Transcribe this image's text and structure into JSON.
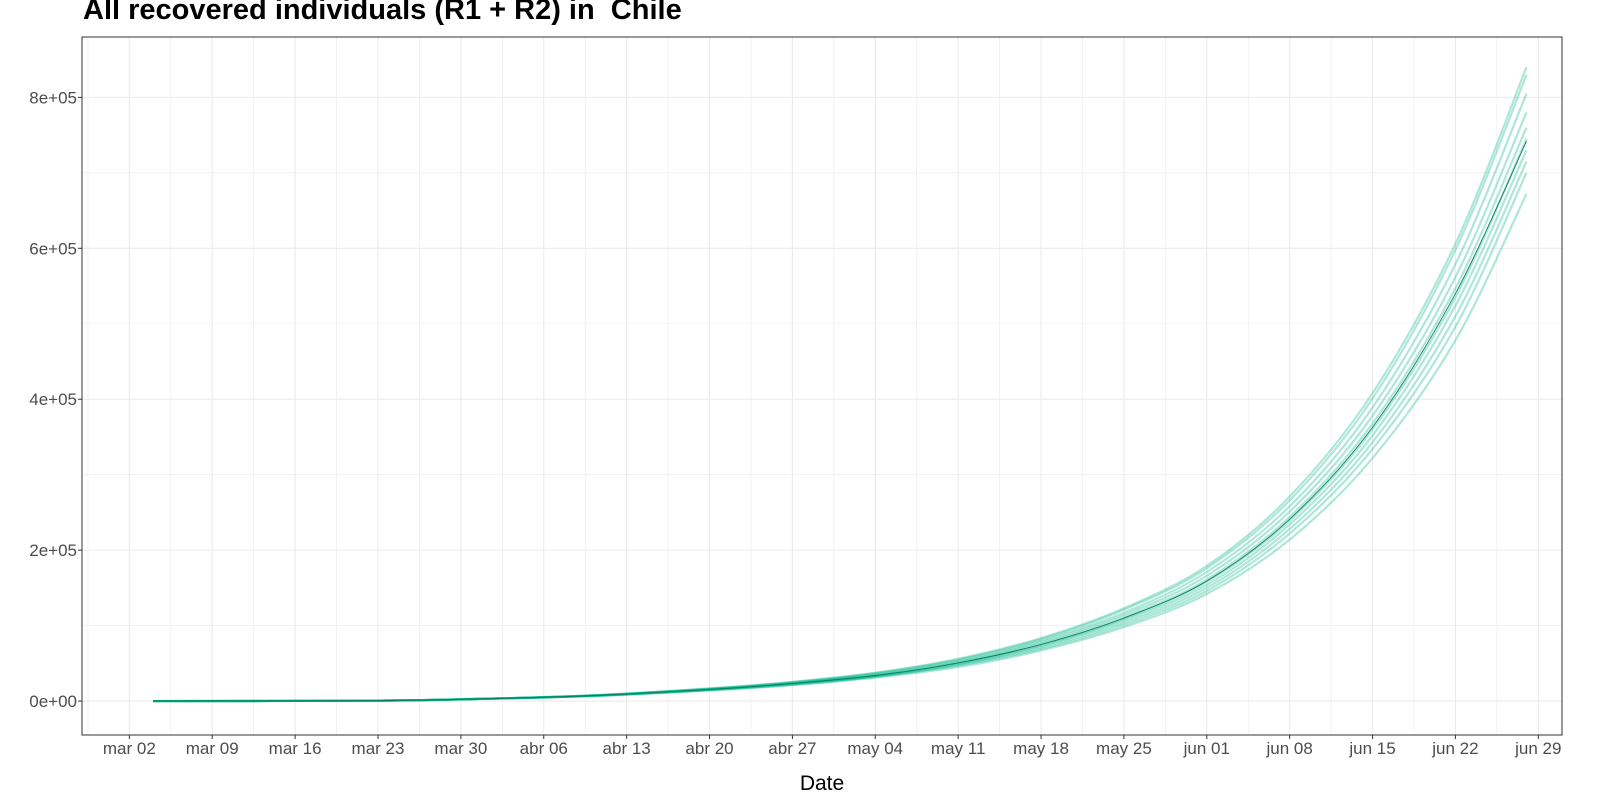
{
  "chart_data": {
    "type": "line",
    "title": "All recovered individuals (R1 + R2) in  Chile",
    "xlabel": "Date",
    "ylabel": "",
    "x_range": [
      "2020-02-27",
      "2020-07-01"
    ],
    "ylim": [
      -45000,
      880000
    ],
    "grid": true,
    "legend": "none",
    "x_ticks": [
      {
        "date": "2020-03-02",
        "label": "mar 02"
      },
      {
        "date": "2020-03-09",
        "label": "mar 09"
      },
      {
        "date": "2020-03-16",
        "label": "mar 16"
      },
      {
        "date": "2020-03-23",
        "label": "mar 23"
      },
      {
        "date": "2020-03-30",
        "label": "mar 30"
      },
      {
        "date": "2020-04-06",
        "label": "abr 06"
      },
      {
        "date": "2020-04-13",
        "label": "abr 13"
      },
      {
        "date": "2020-04-20",
        "label": "abr 20"
      },
      {
        "date": "2020-04-27",
        "label": "abr 27"
      },
      {
        "date": "2020-05-04",
        "label": "may 04"
      },
      {
        "date": "2020-05-11",
        "label": "may 11"
      },
      {
        "date": "2020-05-18",
        "label": "may 18"
      },
      {
        "date": "2020-05-25",
        "label": "may 25"
      },
      {
        "date": "2020-06-01",
        "label": "jun 01"
      },
      {
        "date": "2020-06-08",
        "label": "jun 08"
      },
      {
        "date": "2020-06-15",
        "label": "jun 15"
      },
      {
        "date": "2020-06-22",
        "label": "jun 22"
      },
      {
        "date": "2020-06-29",
        "label": "jun 29"
      }
    ],
    "y_ticks": [
      {
        "value": 0,
        "label": "0e+00"
      },
      {
        "value": 200000,
        "label": "2e+05"
      },
      {
        "value": 400000,
        "label": "4e+05"
      },
      {
        "value": 600000,
        "label": "6e+05"
      },
      {
        "value": 800000,
        "label": "8e+05"
      }
    ],
    "colors": {
      "band": "#00b386",
      "median": "#007a5c",
      "grid": "#ebebeb",
      "panel_border": "#333333"
    },
    "x": [
      "2020-03-04",
      "2020-03-23",
      "2020-04-01",
      "2020-04-10",
      "2020-04-20",
      "2020-04-27",
      "2020-05-04",
      "2020-05-11",
      "2020-05-18",
      "2020-05-25",
      "2020-06-01",
      "2020-06-08",
      "2020-06-15",
      "2020-06-22",
      "2020-06-28"
    ],
    "series": [
      {
        "values": [
          0,
          500,
          3000,
          6500,
          14000,
          21000,
          31000,
          45000,
          67000,
          98000,
          142000,
          214000,
          322000,
          478000,
          672000
        ]
      },
      {
        "values": [
          0,
          500,
          3000,
          6700,
          14500,
          21500,
          32000,
          47000,
          69000,
          101000,
          146000,
          222000,
          334000,
          496000,
          700000
        ]
      },
      {
        "values": [
          0,
          500,
          3000,
          6800,
          14800,
          22000,
          32500,
          48000,
          71000,
          104000,
          150000,
          228000,
          343000,
          510000,
          715000
        ]
      },
      {
        "values": [
          0,
          500,
          3000,
          7000,
          15000,
          22500,
          33000,
          49000,
          73000,
          107000,
          154000,
          234000,
          352000,
          524000,
          730000
        ]
      },
      {
        "values": [
          0,
          500,
          3000,
          7000,
          15200,
          23000,
          33500,
          50000,
          74000,
          109000,
          158000,
          239000,
          360000,
          535000,
          745000
        ]
      },
      {
        "values": [
          0,
          500,
          3000,
          7100,
          15500,
          23500,
          34000,
          51000,
          76000,
          111000,
          161000,
          244000,
          368000,
          547000,
          760000
        ]
      },
      {
        "values": [
          0,
          500,
          3000,
          7200,
          15800,
          24000,
          35000,
          52000,
          78000,
          114000,
          166000,
          251000,
          378000,
          562000,
          780000
        ]
      },
      {
        "values": [
          0,
          500,
          3000,
          7300,
          16000,
          24500,
          36000,
          53500,
          80000,
          117000,
          171000,
          258000,
          389000,
          579000,
          805000
        ]
      },
      {
        "values": [
          0,
          500,
          3000,
          7500,
          16500,
          25000,
          37000,
          55000,
          82000,
          121000,
          176000,
          266000,
          401000,
          598000,
          830000
        ]
      },
      {
        "values": [
          0,
          500,
          3000,
          7600,
          16800,
          25500,
          37500,
          56000,
          83500,
          123000,
          179000,
          271000,
          408000,
          606000,
          840000
        ]
      }
    ],
    "median": {
      "values": [
        0,
        500,
        3000,
        7100,
        15400,
        23200,
        33800,
        50500,
        75000,
        110000,
        159000,
        241000,
        363000,
        540000,
        742000
      ]
    }
  }
}
